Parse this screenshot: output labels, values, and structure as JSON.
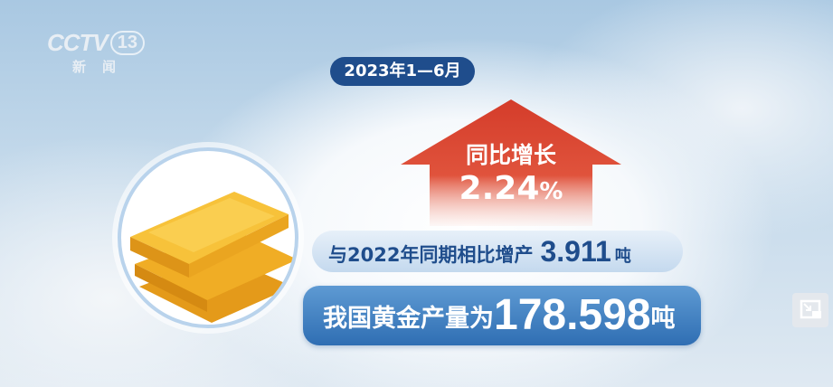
{
  "logo": {
    "brand": "CCTV",
    "channel": "13",
    "sub": "新闻"
  },
  "date": "2023年1—6月",
  "growth": {
    "label": "同比增长",
    "value": "2.24",
    "unit": "%",
    "color": "#d9452f"
  },
  "increase": {
    "prefix": "与2022年同期相比增产",
    "value": "3.911",
    "unit": "吨"
  },
  "output": {
    "prefix": "我国黄金产量为",
    "value": "178.598",
    "unit": "吨"
  },
  "colors": {
    "dark_blue": "#1f4d8c",
    "pill_blue": "#3a7cc0",
    "gold": "#f3b427"
  },
  "icons": {
    "corner": "picture-in-picture-exit-icon",
    "circle": "gold-bars-icon"
  }
}
